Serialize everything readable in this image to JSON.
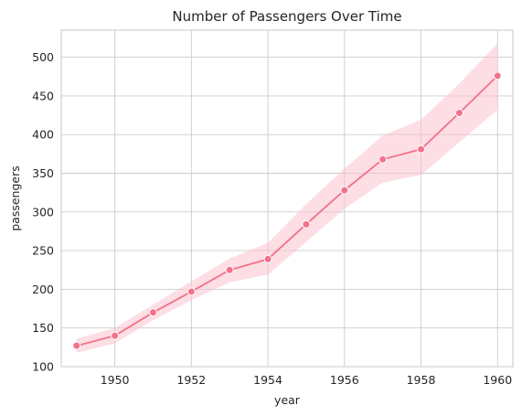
{
  "chart_data": {
    "type": "line",
    "title": "Number of Passengers Over Time",
    "xlabel": "year",
    "ylabel": "passengers",
    "xlim": [
      1948.6,
      1960.4
    ],
    "ylim": [
      100,
      535
    ],
    "xticks": [
      1950,
      1952,
      1954,
      1956,
      1958,
      1960
    ],
    "yticks": [
      100,
      150,
      200,
      250,
      300,
      350,
      400,
      450,
      500
    ],
    "grid": true,
    "colors": {
      "line": "#f27289",
      "band": "#f9c2cd",
      "grid": "#cccccc"
    },
    "series": [
      {
        "x": [
          1949,
          1950,
          1951,
          1952,
          1953,
          1954,
          1955,
          1956,
          1957,
          1958,
          1959,
          1960
        ],
        "values": [
          127,
          140,
          170,
          197,
          225,
          239,
          284,
          328,
          368,
          381,
          428,
          476
        ],
        "ci_lower": [
          118,
          130,
          160,
          186,
          209,
          219,
          261,
          304,
          338,
          348,
          390,
          432
        ],
        "ci_upper": [
          136,
          150,
          180,
          210,
          240,
          260,
          310,
          356,
          399,
          419,
          466,
          518
        ]
      }
    ]
  }
}
